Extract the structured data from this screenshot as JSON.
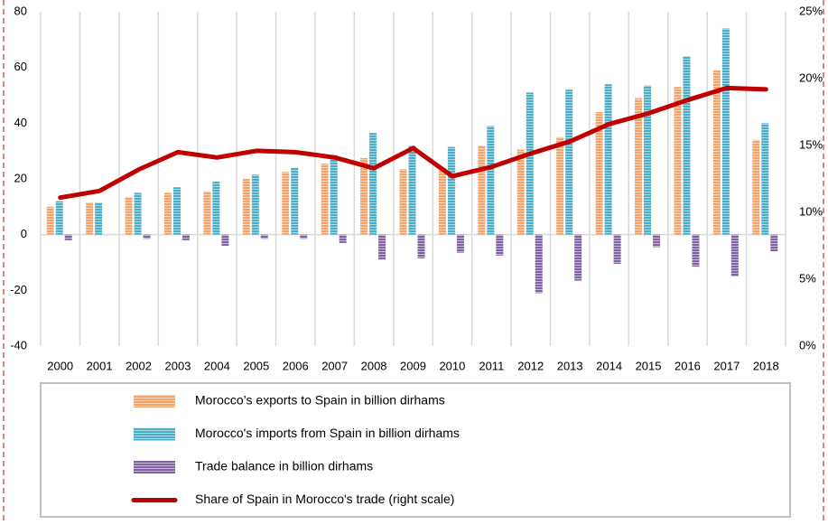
{
  "chart_data": {
    "type": "bar-line",
    "categories": [
      "2000",
      "2001",
      "2002",
      "2003",
      "2004",
      "2005",
      "2006",
      "2007",
      "2008",
      "2009",
      "2010",
      "2011",
      "2012",
      "2013",
      "2014",
      "2015",
      "2016",
      "2017",
      "2018"
    ],
    "series": [
      {
        "name": "Morocco’s exports to Spain in billion dirhams",
        "color": "#f4a46a",
        "type": "bar",
        "values": [
          10,
          11.5,
          13.5,
          15,
          15.5,
          20,
          22.5,
          25.5,
          27.5,
          23.5,
          24,
          32,
          30.5,
          35,
          44,
          49,
          53,
          59,
          34
        ]
      },
      {
        "name": "Morocco's imports from Spain in billion dirhams",
        "color": "#4bacc6",
        "type": "bar",
        "values": [
          12,
          11.5,
          15,
          17,
          19,
          21.5,
          24,
          28.5,
          36.5,
          32,
          31.5,
          39,
          51,
          52,
          54,
          53.5,
          64,
          74,
          40
        ]
      },
      {
        "name": "Trade balance in billion dirhams",
        "color": "#8064a2",
        "type": "bar",
        "values": [
          -2,
          0,
          -1.5,
          -2,
          -4,
          -1.5,
          -1.5,
          -3,
          -9,
          -8.5,
          -6.5,
          -7.5,
          -21,
          -16.5,
          -10.5,
          -4.5,
          -11.5,
          -15,
          -6
        ]
      },
      {
        "name": "Share of Spain in Morocco's trade (right scale)",
        "color": "#c00000",
        "type": "line",
        "axis": "y2",
        "values": [
          11.1,
          11.6,
          13.2,
          14.5,
          14.1,
          14.6,
          14.5,
          14.1,
          13.3,
          14.8,
          12.7,
          13.4,
          14.4,
          15.3,
          16.6,
          17.4,
          18.4,
          19.3,
          19.2
        ]
      }
    ],
    "ylim": [
      -40,
      80
    ],
    "yticks": [
      -40,
      -20,
      0,
      20,
      40,
      60,
      80
    ],
    "y2lim": [
      0,
      25
    ],
    "y2ticks": [
      {
        "value": 0,
        "label": "0%"
      },
      {
        "value": 5,
        "label": "5%"
      },
      {
        "value": 10,
        "label": "10%"
      },
      {
        "value": 15,
        "label": "15%"
      },
      {
        "value": 20,
        "label": "20%"
      },
      {
        "value": 25,
        "label": "25%"
      }
    ],
    "legend": "bottom"
  }
}
